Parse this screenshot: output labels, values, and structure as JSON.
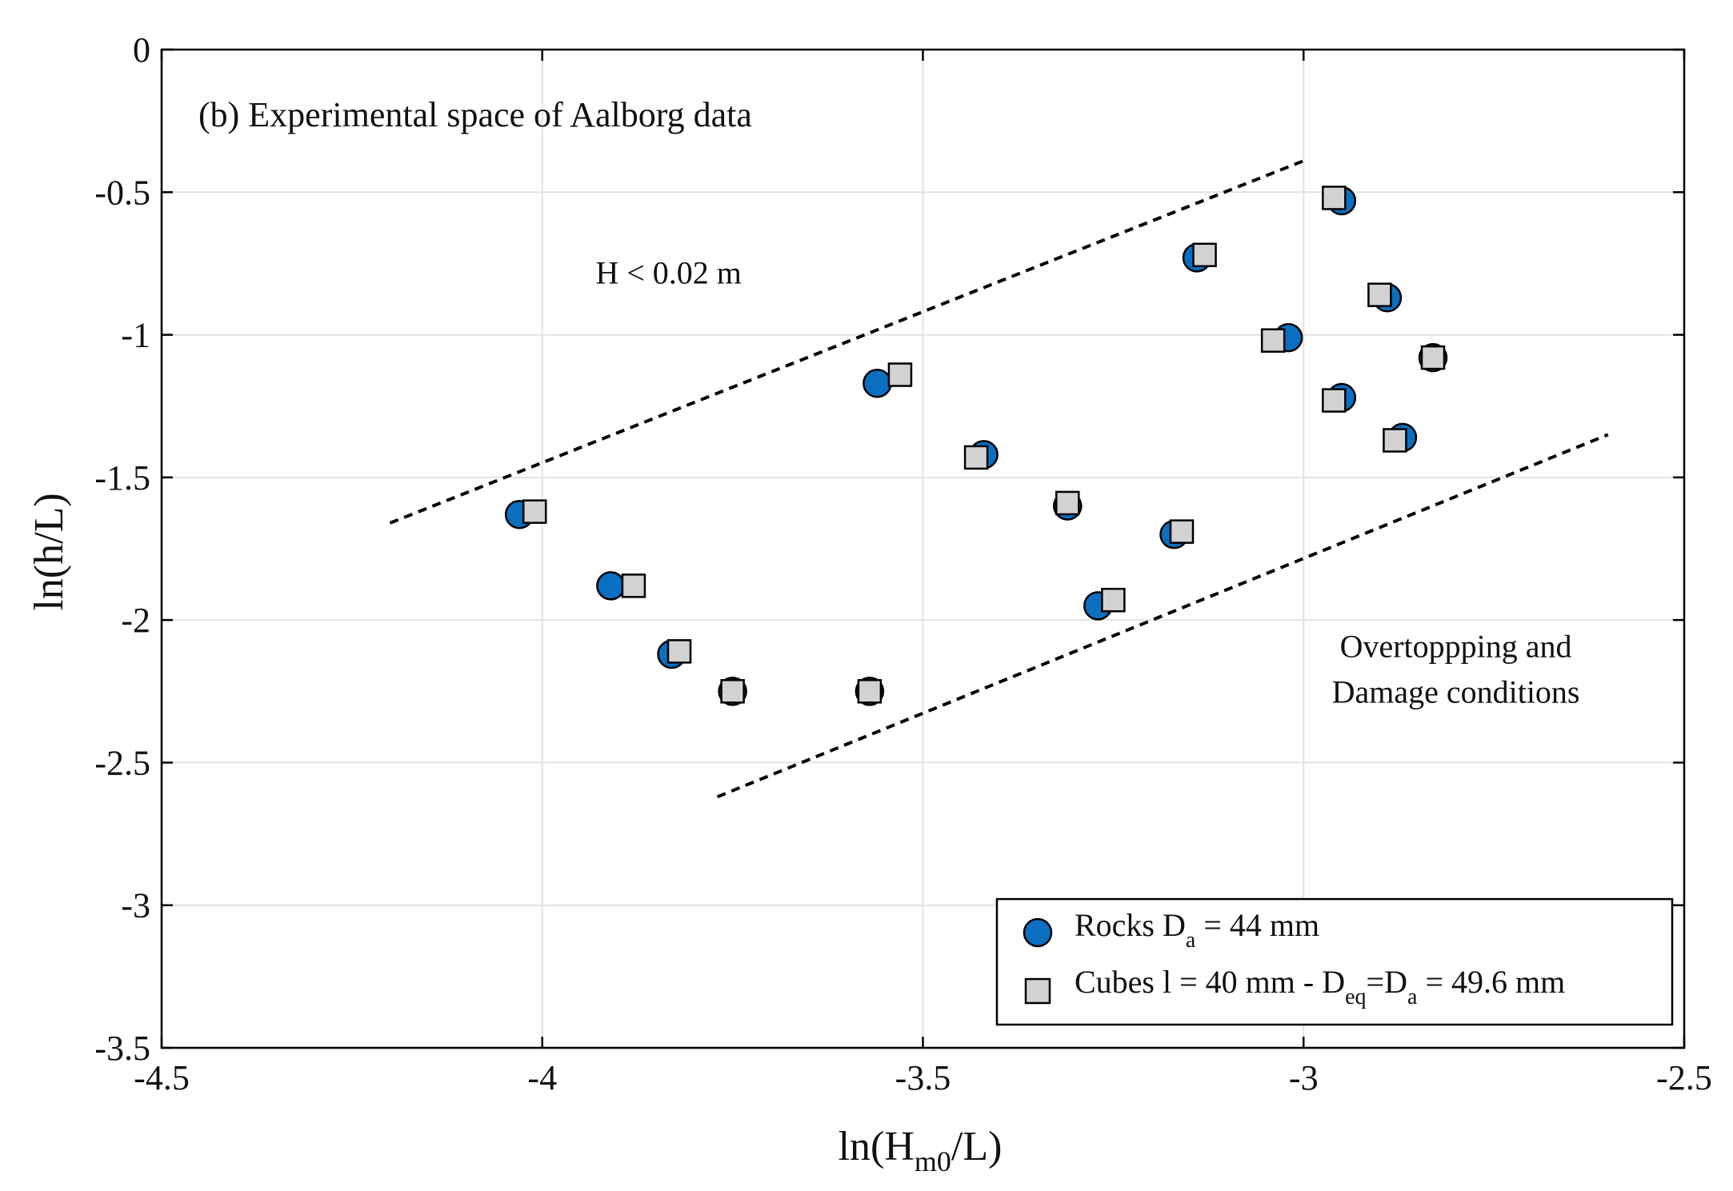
{
  "chart_data": {
    "type": "scatter",
    "title": "(b) Experimental space of Aalborg data",
    "xlabel": {
      "main": "ln(H",
      "sub": "m0",
      "tail": "/L)"
    },
    "ylabel": "ln(h/L)",
    "xlim": [
      -4.5,
      -2.5
    ],
    "ylim": [
      -3.5,
      0
    ],
    "xticks": [
      -4.5,
      -4,
      -3.5,
      -3,
      -2.5
    ],
    "xtick_labels": [
      "-4.5",
      "-4",
      "-3.5",
      "-3",
      "-2.5"
    ],
    "yticks": [
      0,
      -0.5,
      -1,
      -1.5,
      -2,
      -2.5,
      -3,
      -3.5
    ],
    "ytick_labels": [
      "0",
      "-0.5",
      "-1",
      "-1.5",
      "-2",
      "-2.5",
      "-3",
      "-3.5"
    ],
    "grid": true,
    "series": [
      {
        "name": "Rocks Da = 44 mm",
        "legend": {
          "pre": "Rocks D",
          "sub": "a",
          "post": " = 44 mm"
        },
        "marker": "circle",
        "color": "#0a6fc0",
        "x": [
          -4.03,
          -3.91,
          -3.83,
          -3.75,
          -3.57,
          -3.56,
          -3.42,
          -3.31,
          -3.27,
          -3.17,
          -3.14,
          -3.02,
          -2.95,
          -2.95,
          -2.89,
          -2.87,
          -2.83
        ],
        "y": [
          -1.63,
          -1.88,
          -2.12,
          -2.25,
          -2.25,
          -1.17,
          -1.42,
          -1.6,
          -1.95,
          -1.7,
          -0.73,
          -1.01,
          -0.53,
          -1.22,
          -0.87,
          -1.36,
          -1.08
        ]
      },
      {
        "name": "Cubes l = 40 mm - Deq=Da = 49.6 mm",
        "legend": {
          "pre": "Cubes l = 40 mm - D",
          "sub": "eq",
          "mid": "=D",
          "sub2": "a",
          "post": " = 49.6 mm"
        },
        "marker": "square",
        "color": "#d2d2d2",
        "x": [
          -4.01,
          -3.88,
          -3.82,
          -3.75,
          -3.57,
          -3.53,
          -3.43,
          -3.31,
          -3.25,
          -3.16,
          -3.13,
          -3.04,
          -2.96,
          -2.96,
          -2.9,
          -2.88,
          -2.83
        ],
        "y": [
          -1.62,
          -1.88,
          -2.11,
          -2.25,
          -2.25,
          -1.14,
          -1.43,
          -1.59,
          -1.93,
          -1.69,
          -0.72,
          -1.02,
          -0.52,
          -1.23,
          -0.86,
          -1.37,
          -1.08
        ]
      }
    ],
    "lines": [
      {
        "name": "upper-bound",
        "style": "dashed",
        "x": [
          -4.2,
          -3.0
        ],
        "y": [
          -1.66,
          -0.39
        ]
      },
      {
        "name": "lower-bound",
        "style": "dashed",
        "x": [
          -3.77,
          -2.6
        ],
        "y": [
          -2.62,
          -1.35
        ]
      }
    ],
    "annotations": [
      {
        "name": "wave-height-limit",
        "text": "H < 0.02 m",
        "x": -3.93,
        "y": -0.82
      },
      {
        "name": "overtopping-line-1",
        "text": "Overtoppping and",
        "x": -2.8,
        "y": -2.13
      },
      {
        "name": "overtopping-line-2",
        "text": "Damage conditions",
        "x": -2.8,
        "y": -2.29
      }
    ],
    "legend_position": "bottom-right"
  }
}
